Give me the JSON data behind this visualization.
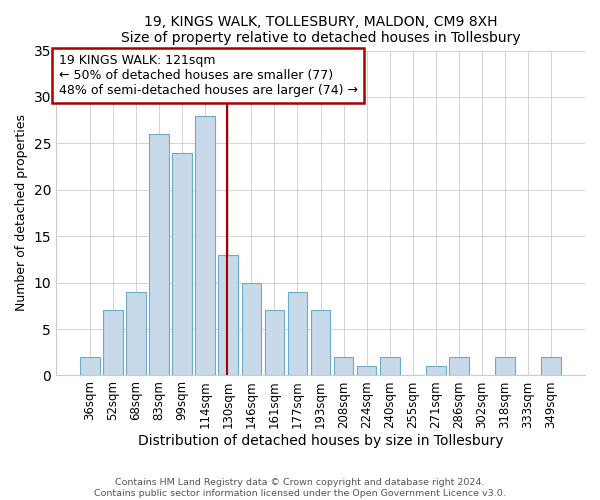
{
  "title": "19, KINGS WALK, TOLLESBURY, MALDON, CM9 8XH",
  "subtitle": "Size of property relative to detached houses in Tollesbury",
  "xlabel": "Distribution of detached houses by size in Tollesbury",
  "ylabel": "Number of detached properties",
  "bar_labels": [
    "36sqm",
    "52sqm",
    "68sqm",
    "83sqm",
    "99sqm",
    "114sqm",
    "130sqm",
    "146sqm",
    "161sqm",
    "177sqm",
    "193sqm",
    "208sqm",
    "224sqm",
    "240sqm",
    "255sqm",
    "271sqm",
    "286sqm",
    "302sqm",
    "318sqm",
    "333sqm",
    "349sqm"
  ],
  "bar_values": [
    2,
    7,
    9,
    26,
    24,
    28,
    13,
    10,
    7,
    9,
    7,
    2,
    1,
    2,
    0,
    1,
    2,
    0,
    2,
    0,
    2
  ],
  "bar_color": "#c8d9ea",
  "bar_edgecolor": "#6aaacb",
  "ylim": [
    0,
    35
  ],
  "yticks": [
    0,
    5,
    10,
    15,
    20,
    25,
    30,
    35
  ],
  "vline_color": "#aa0000",
  "vline_x_index": 6,
  "annotation_title": "19 KINGS WALK: 121sqm",
  "annotation_line1": "← 50% of detached houses are smaller (77)",
  "annotation_line2": "48% of semi-detached houses are larger (74) →",
  "annotation_box_color": "#ffffff",
  "annotation_box_edgecolor": "#aa0000",
  "footer1": "Contains HM Land Registry data © Crown copyright and database right 2024.",
  "footer2": "Contains public sector information licensed under the Open Government Licence v3.0.",
  "figsize": [
    6.0,
    5.0
  ],
  "dpi": 100
}
